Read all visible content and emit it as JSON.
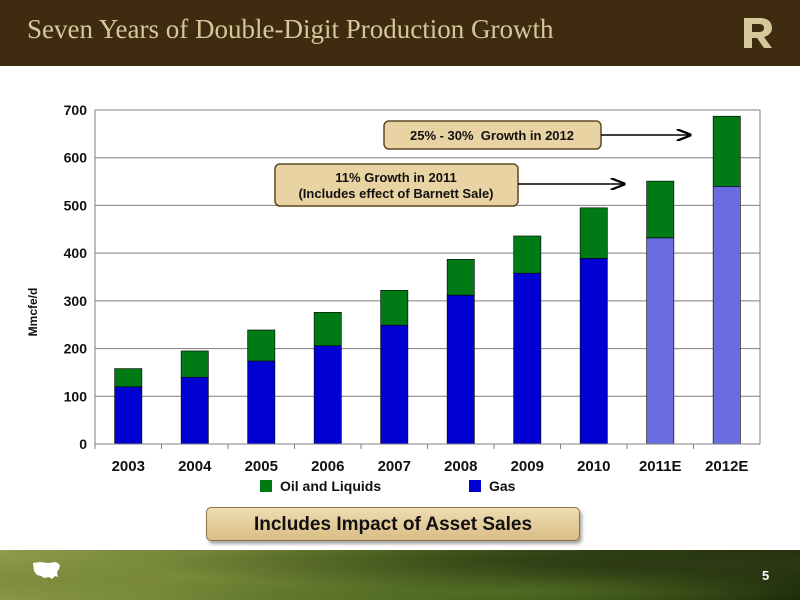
{
  "header": {
    "title": "Seven Years of Double-Digit Production Growth",
    "logo_icon": "company-logo-icon"
  },
  "chart_data": {
    "type": "bar",
    "stacked": true,
    "categories": [
      "2003",
      "2004",
      "2005",
      "2006",
      "2007",
      "2008",
      "2009",
      "2010",
      "2011E",
      "2012E"
    ],
    "series": [
      {
        "name": "Gas",
        "values": [
          120,
          140,
          174,
          206,
          249,
          312,
          358,
          389,
          432,
          540
        ],
        "color": "#0000d0",
        "estimate_color": "#6b6be0"
      },
      {
        "name": "Oil and Liquids",
        "values": [
          38,
          55,
          65,
          70,
          73,
          75,
          78,
          106,
          119,
          147
        ],
        "color": "#007a14"
      }
    ],
    "estimated_categories": [
      "2011E",
      "2012E"
    ],
    "ylabel": "Mmcfe/d",
    "ylim": [
      0,
      700
    ],
    "yticks": [
      0,
      100,
      200,
      300,
      400,
      500,
      600,
      700
    ],
    "grid": true,
    "legend": {
      "placement": "bottom",
      "entries": [
        "Oil and Liquids",
        "Gas"
      ]
    },
    "annotations": [
      {
        "text": "25% - 30%  Growth in 2012",
        "target": "2012E"
      },
      {
        "text_lines": [
          "11% Growth in 2011",
          "(Includes effect of Barnett Sale)"
        ],
        "target": "2011E"
      }
    ]
  },
  "banner": {
    "text": "Includes Impact of Asset Sales"
  },
  "footer": {
    "page_number": "5",
    "map_icon": "us-map-icon"
  }
}
